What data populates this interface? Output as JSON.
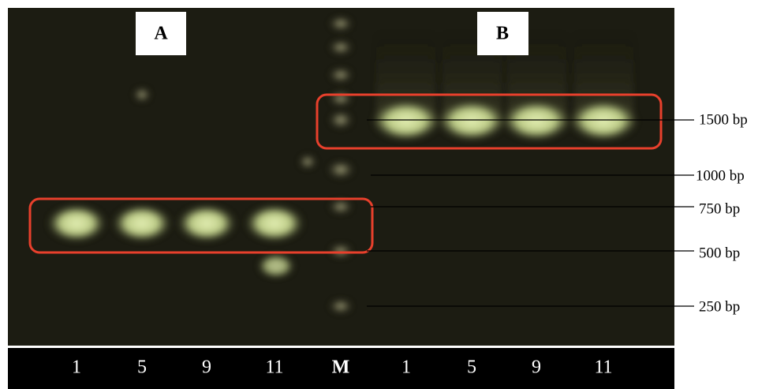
{
  "panels": [
    "A",
    "B"
  ],
  "lanes": [
    "1",
    "5",
    "9",
    "11",
    "M",
    "1",
    "5",
    "9",
    "11"
  ],
  "markers": [
    "1500 bp",
    "1000 bp",
    "750 bp",
    "500 bp",
    "250 bp"
  ]
}
